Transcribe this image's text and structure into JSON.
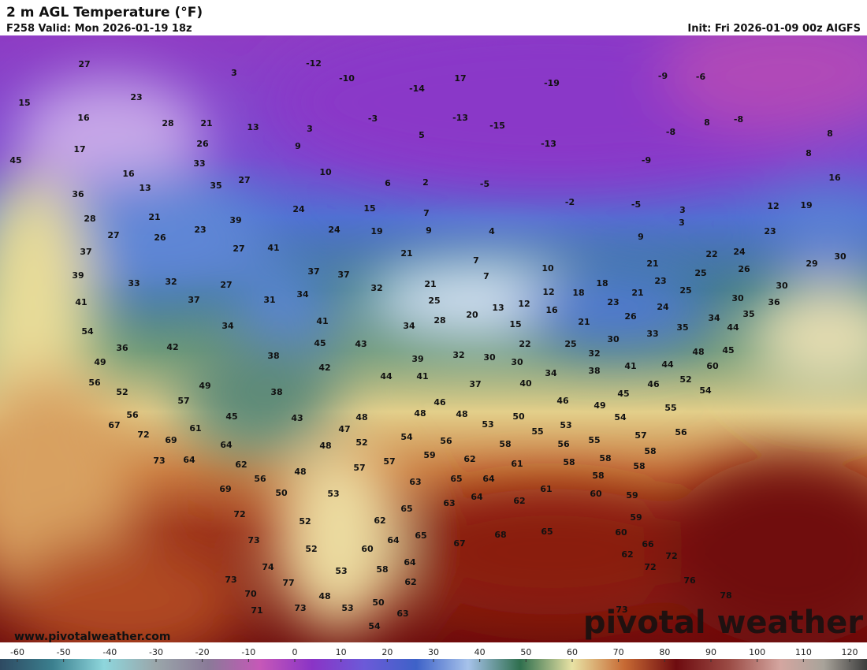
{
  "header": {
    "title": "2 m AGL Temperature (°F)",
    "valid": "F258 Valid: Mon 2026-01-19 18z",
    "init": "Init: Fri 2026-01-09 00z AIGFS"
  },
  "map": {
    "labels": [
      27,
      15,
      23,
      16,
      17,
      45,
      28,
      21,
      26,
      13,
      3,
      9,
      3,
      -12,
      -10,
      17,
      -14,
      -19,
      -13,
      -15,
      -3,
      5,
      -13,
      -9,
      -6,
      8,
      -8,
      -8,
      8,
      -9,
      8,
      10,
      6,
      2,
      -5,
      -2,
      -5,
      3,
      16,
      33,
      27,
      35,
      13,
      36,
      28,
      21,
      27,
      26,
      23,
      39,
      24,
      15,
      7,
      19,
      9,
      24,
      4,
      9,
      3,
      12,
      19,
      16,
      23,
      37,
      39,
      41,
      33,
      32,
      37,
      27,
      27,
      41,
      37,
      37,
      31,
      34,
      32,
      21,
      7,
      7,
      10,
      21,
      25,
      13,
      12,
      20,
      28,
      12,
      18,
      18,
      21,
      23,
      21,
      23,
      24,
      25,
      22,
      24,
      26,
      25,
      30,
      29,
      30,
      30,
      36,
      35,
      44,
      34,
      35,
      33,
      26,
      30,
      21,
      25,
      16,
      15,
      22,
      32,
      30,
      30,
      32,
      39,
      34,
      41,
      45,
      38,
      34,
      54,
      36,
      42,
      43,
      41,
      44,
      37,
      40,
      34,
      38,
      41,
      44,
      48,
      60,
      45,
      46,
      52,
      54,
      45,
      49,
      46,
      50,
      53,
      48,
      46,
      48,
      42,
      38,
      49,
      49,
      56,
      52,
      57,
      56,
      67,
      72,
      69,
      61,
      45,
      43,
      48,
      47,
      52,
      48,
      54,
      56,
      59,
      57,
      57,
      62,
      58,
      55,
      53,
      55,
      56,
      54,
      55,
      56,
      57,
      58,
      58,
      58,
      61,
      58,
      58,
      73,
      64,
      64,
      62,
      56,
      48,
      63,
      65,
      64,
      69,
      50,
      53,
      63,
      64,
      62,
      61,
      60,
      59,
      65,
      72,
      52,
      62,
      59,
      73,
      52,
      60,
      64,
      65,
      67,
      68,
      65,
      60,
      66,
      62,
      74,
      53,
      58,
      64,
      62,
      72,
      72,
      73,
      70,
      77,
      48,
      50,
      53,
      63,
      71,
      73,
      54,
      76,
      78,
      73
    ]
  },
  "colorbar": {
    "ticks": [
      -60,
      -50,
      -40,
      -30,
      -20,
      -10,
      0,
      10,
      20,
      30,
      40,
      50,
      60,
      70,
      80,
      90,
      100,
      110,
      120
    ]
  },
  "watermark": {
    "url": "www.pivotalweather.com",
    "logo": "pivotal weather"
  }
}
